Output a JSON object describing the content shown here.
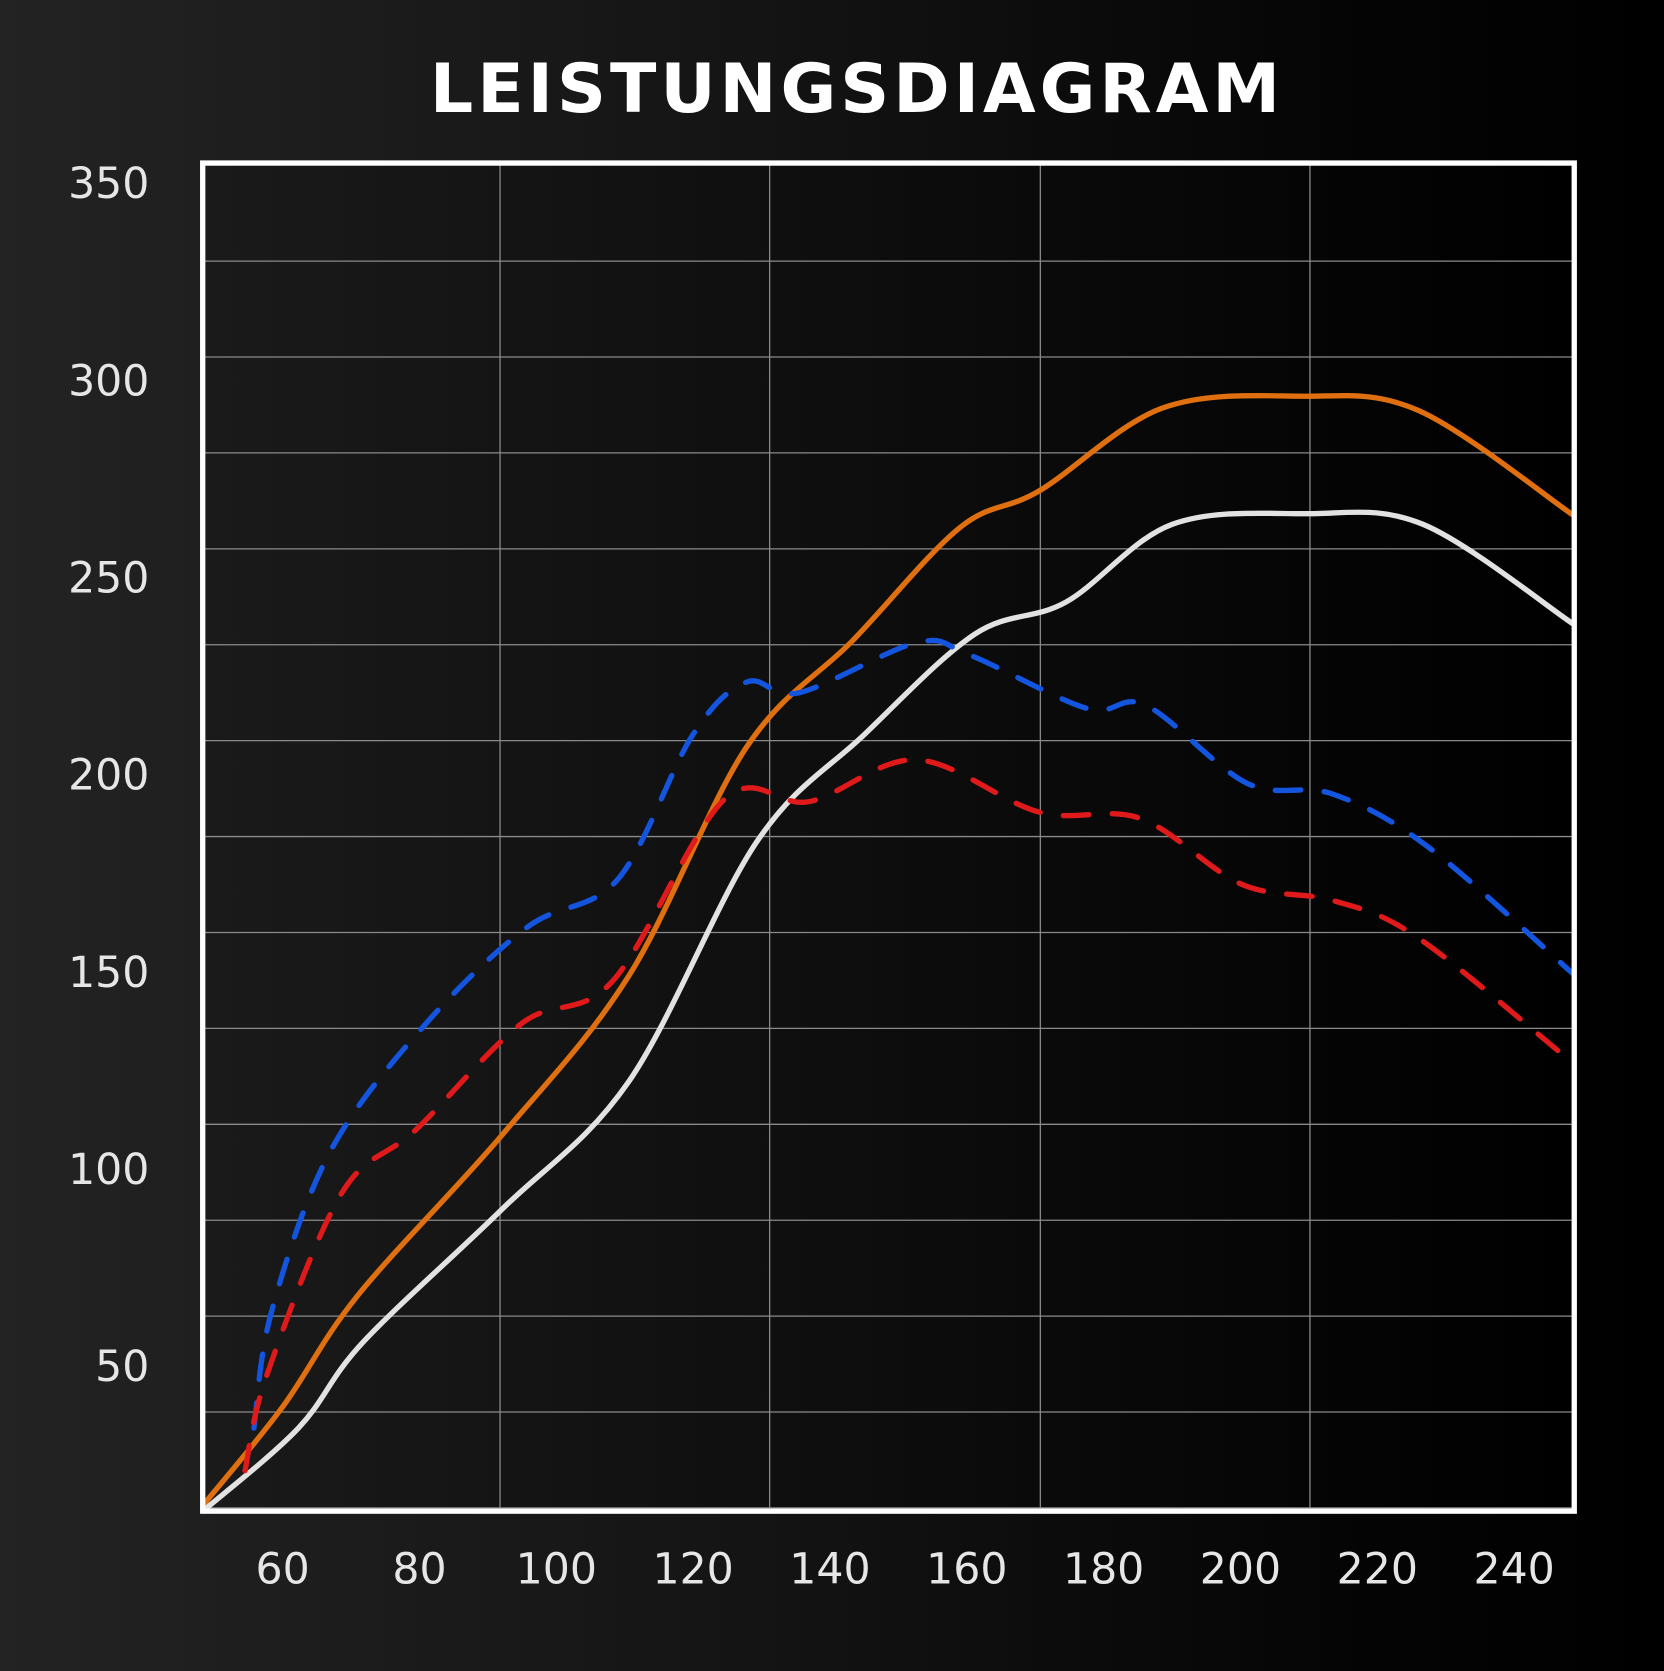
{
  "title": "LEISTUNGSDIAGRAM",
  "chart_data": {
    "type": "line",
    "title": "LEISTUNGSDIAGRAM",
    "xlabel": "",
    "ylabel": "",
    "xlim": [
      48.3,
      248.5
    ],
    "ylim": [
      13.2,
      355.4
    ],
    "x_ticks": [
      60,
      80,
      100,
      120,
      140,
      160,
      180,
      200,
      220,
      240
    ],
    "y_ticks": [
      50,
      100,
      150,
      200,
      250,
      300,
      350
    ],
    "grid": true,
    "legend": null,
    "colors": {
      "background_frame": "#ffffff",
      "grid": "#8a8a8a"
    },
    "series": [
      {
        "name": "orange-solid",
        "color": "#e0700f",
        "style": "solid",
        "points": [
          [
            48.3,
            14.6
          ],
          [
            60,
            39.7
          ],
          [
            71,
            68
          ],
          [
            92,
            108.5
          ],
          [
            110.6,
            149
          ],
          [
            127.8,
            207
          ],
          [
            143.3,
            234
          ],
          [
            159,
            262.7
          ],
          [
            170.6,
            272
          ],
          [
            188.6,
            293
          ],
          [
            208.8,
            296
          ],
          [
            226,
            292.4
          ],
          [
            248.5,
            266
          ]
        ]
      },
      {
        "name": "white-solid",
        "color": "#e2e2e2",
        "style": "solid",
        "points": [
          [
            48.3,
            13.2
          ],
          [
            62.3,
            34.3
          ],
          [
            71.7,
            56
          ],
          [
            92,
            89.7
          ],
          [
            110.6,
            122.2
          ],
          [
            129.3,
            183
          ],
          [
            144.9,
            210
          ],
          [
            161.2,
            235.7
          ],
          [
            174.5,
            243.8
          ],
          [
            190,
            263.5
          ],
          [
            209.5,
            266.2
          ],
          [
            226.7,
            263.5
          ],
          [
            248.5,
            238.4
          ]
        ]
      },
      {
        "name": "blue-dashed",
        "color": "#1455e0",
        "style": "dashed",
        "points": [
          [
            55.8,
            34.3
          ],
          [
            58.4,
            64
          ],
          [
            67,
            104.6
          ],
          [
            81,
            137
          ],
          [
            95.8,
            161.4
          ],
          [
            109,
            173.5
          ],
          [
            119.9,
            210
          ],
          [
            127.8,
            223.5
          ],
          [
            135.5,
            220.8
          ],
          [
            152.7,
            233.5
          ],
          [
            160.5,
            230.3
          ],
          [
            177.6,
            216.8
          ],
          [
            186.2,
            217.6
          ],
          [
            201,
            197.8
          ],
          [
            213.5,
            195.1
          ],
          [
            227.5,
            181.6
          ],
          [
            248.5,
            149.7
          ]
        ]
      },
      {
        "name": "red-dashed",
        "color": "#e01a1a",
        "style": "dashed",
        "points": [
          [
            54.5,
            23.5
          ],
          [
            57.7,
            47.8
          ],
          [
            68.6,
            93.8
          ],
          [
            79.5,
            110
          ],
          [
            95,
            137
          ],
          [
            108.3,
            147.8
          ],
          [
            124.6,
            193.8
          ],
          [
            137,
            193.2
          ],
          [
            152.7,
            203.8
          ],
          [
            170.6,
            190.5
          ],
          [
            185.4,
            188.9
          ],
          [
            200.2,
            172.2
          ],
          [
            213.5,
            168.1
          ],
          [
            226,
            158.6
          ],
          [
            248.5,
            127
          ]
        ]
      }
    ]
  }
}
